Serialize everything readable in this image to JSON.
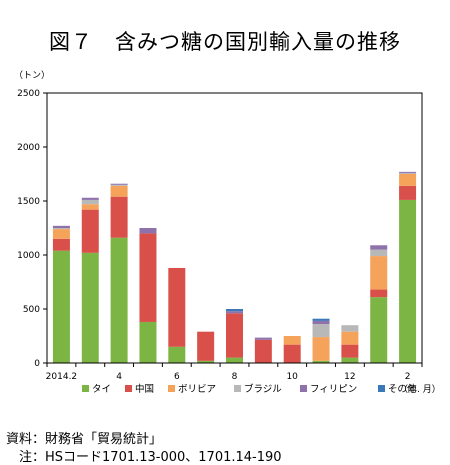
{
  "title": "図７　含みつ糖の国別輸入量の推移",
  "source_line": "資料：財務省「貿易統計」",
  "note_line": "　注：HSコード1701.13-000、1701.14-190",
  "chart_data": {
    "type": "bar",
    "stacked": true,
    "ylabel": "（トン）",
    "xlabel": "（年. 月）",
    "ylim": [
      0,
      2500
    ],
    "yticks": [
      0,
      500,
      1000,
      1500,
      2000,
      2500
    ],
    "grid": false,
    "legend_position": "bottom",
    "categories": [
      "2014.2",
      "3",
      "4",
      "5",
      "6",
      "7",
      "8",
      "9",
      "10",
      "11",
      "12",
      "1",
      "2"
    ],
    "tick_labels": [
      "2014.2",
      "",
      "4",
      "",
      "6",
      "",
      "8",
      "",
      "10",
      "",
      "12",
      "",
      "2"
    ],
    "series": [
      {
        "name": "タイ",
        "color": "#7db544",
        "values": [
          1040,
          1020,
          1160,
          380,
          150,
          20,
          50,
          0,
          0,
          20,
          50,
          610,
          1510
        ]
      },
      {
        "name": "中国",
        "color": "#d9504a",
        "values": [
          110,
          400,
          380,
          820,
          730,
          270,
          410,
          215,
          170,
          0,
          120,
          70,
          130
        ]
      },
      {
        "name": "ボリビア",
        "color": "#f5a35a",
        "values": [
          90,
          50,
          100,
          0,
          0,
          0,
          0,
          0,
          80,
          220,
          120,
          310,
          110
        ]
      },
      {
        "name": "ブラジル",
        "color": "#b8b8b8",
        "values": [
          10,
          40,
          10,
          0,
          0,
          0,
          0,
          0,
          0,
          120,
          60,
          60,
          10
        ]
      },
      {
        "name": "フィリピン",
        "color": "#8e72ac",
        "values": [
          20,
          20,
          10,
          50,
          0,
          0,
          20,
          20,
          0,
          30,
          0,
          40,
          10
        ]
      },
      {
        "name": "その他",
        "color": "#3a78b8",
        "values": [
          0,
          0,
          0,
          0,
          0,
          0,
          20,
          0,
          0,
          20,
          0,
          0,
          0
        ]
      }
    ]
  }
}
